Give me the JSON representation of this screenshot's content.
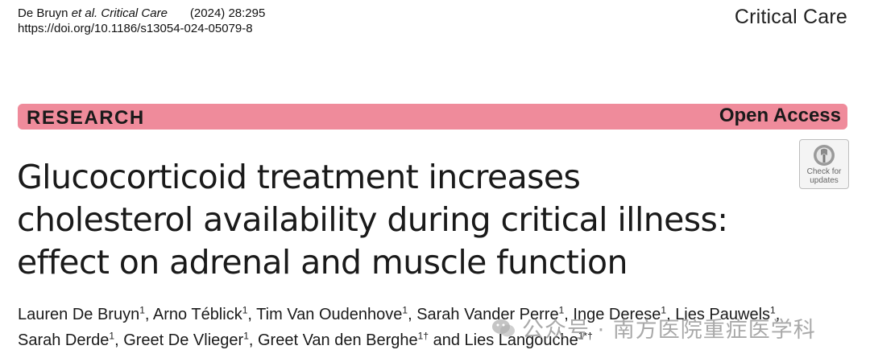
{
  "header": {
    "citation_authors": "De Bruyn",
    "citation_etal": "et al.",
    "citation_journal": "Critical Care",
    "citation_year_vol": "(2024) 28:295",
    "doi": "https://doi.org/10.1186/s13054-024-05079-8",
    "journal_brand": "Critical Care"
  },
  "banner": {
    "article_type": "RESEARCH",
    "access": "Open Access",
    "color": "#ef8b9b"
  },
  "title_lines": [
    "Glucocorticoid treatment increases",
    "cholesterol availability during critical illness:",
    "effect on adrenal and muscle function"
  ],
  "check_updates": {
    "line1": "Check for",
    "line2": "updates",
    "icon": "crossmark-icon"
  },
  "authors": [
    {
      "name": "Lauren De Bruyn",
      "sup": "1",
      "sep": ", "
    },
    {
      "name": "Arno Téblick",
      "sup": "1",
      "sep": ", "
    },
    {
      "name": "Tim Van Oudenhove",
      "sup": "1",
      "sep": ", "
    },
    {
      "name": "Sarah Vander Perre",
      "sup": "1",
      "sep": ", "
    },
    {
      "name": "Inge Derese",
      "sup": "1",
      "sep": ", "
    },
    {
      "name": "Lies Pauwels",
      "sup": "1",
      "sep": ","
    },
    {
      "name": "Sarah Derde",
      "sup": "1",
      "sep": ", "
    },
    {
      "name": "Greet De Vlieger",
      "sup": "1",
      "sep": ", "
    },
    {
      "name": "Greet Van den Berghe",
      "sup": "1†",
      "sep": " and "
    },
    {
      "name": "Lies Langouche",
      "sup": "1*†",
      "sep": ""
    }
  ],
  "watermark": {
    "text": "公众号 · 南方医院重症医学科",
    "icon": "wechat-icon"
  }
}
